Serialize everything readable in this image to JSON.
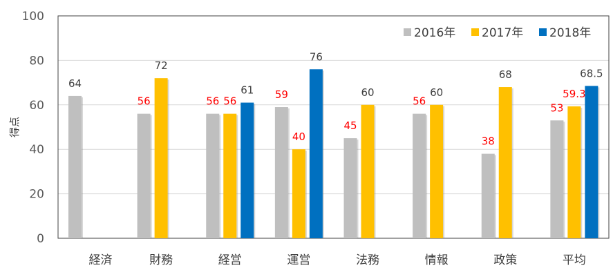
{
  "chart_data": {
    "type": "bar",
    "title": "",
    "xlabel": "",
    "ylabel": "得点",
    "ylim": [
      0,
      100
    ],
    "yticks": [
      0,
      20,
      40,
      60,
      80,
      100
    ],
    "grid": true,
    "legend_position": "top-right",
    "categories": [
      "経済",
      "財務",
      "経営",
      "運営",
      "法務",
      "情報",
      "政策",
      "平均"
    ],
    "series": [
      {
        "name": "2016年",
        "color": "#BFBFBF",
        "values": [
          64,
          56,
          56,
          59,
          45,
          56,
          38,
          53
        ],
        "labels": [
          "64",
          "56",
          "56",
          "59",
          "45",
          "56",
          "38",
          "53"
        ],
        "label_colors": [
          "#404040",
          "#FF0000",
          "#FF0000",
          "#FF0000",
          "#FF0000",
          "#FF0000",
          "#FF0000",
          "#FF0000"
        ]
      },
      {
        "name": "2017年",
        "color": "#FFC000",
        "values": [
          null,
          72,
          56,
          40,
          60,
          60,
          68,
          59.3
        ],
        "labels": [
          "",
          "72",
          "56",
          "40",
          "60",
          "60",
          "68",
          "59.3"
        ],
        "label_colors": [
          "#404040",
          "#404040",
          "#FF0000",
          "#FF0000",
          "#404040",
          "#404040",
          "#404040",
          "#FF0000"
        ]
      },
      {
        "name": "2018年",
        "color": "#0070C0",
        "values": [
          null,
          null,
          61,
          76,
          null,
          null,
          null,
          68.5
        ],
        "labels": [
          "",
          "",
          "61",
          "76",
          "",
          "",
          "",
          "68.5"
        ],
        "label_colors": [
          "#404040",
          "#404040",
          "#404040",
          "#404040",
          "#404040",
          "#404040",
          "#404040",
          "#404040"
        ]
      }
    ]
  }
}
